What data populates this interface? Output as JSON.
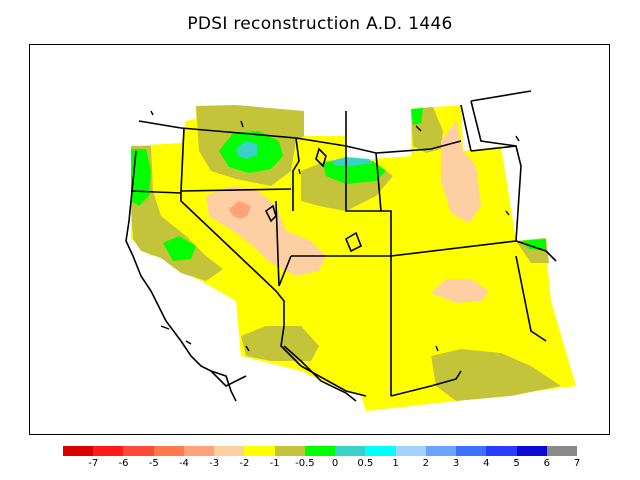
{
  "title": "PDSI reconstruction A.D. 1446",
  "colorbar": {
    "colors": [
      "#d90000",
      "#ff1a1a",
      "#ff4a3a",
      "#ff7a4a",
      "#ffa27a",
      "#ffcfa4",
      "#ffff00",
      "#c4c43a",
      "#00ff00",
      "#3ad2c8",
      "#00ffff",
      "#a4d2ff",
      "#6aa4ff",
      "#3a72ff",
      "#2a3aff",
      "#0a0ad2",
      "#8a8a8a"
    ],
    "tick_labels": [
      "-7",
      "-6",
      "-5",
      "-4",
      "-3",
      "-2",
      "-1",
      "-0.5",
      "0",
      "0.5",
      "1",
      "2",
      "3",
      "4",
      "5",
      "6",
      "7"
    ]
  }
}
